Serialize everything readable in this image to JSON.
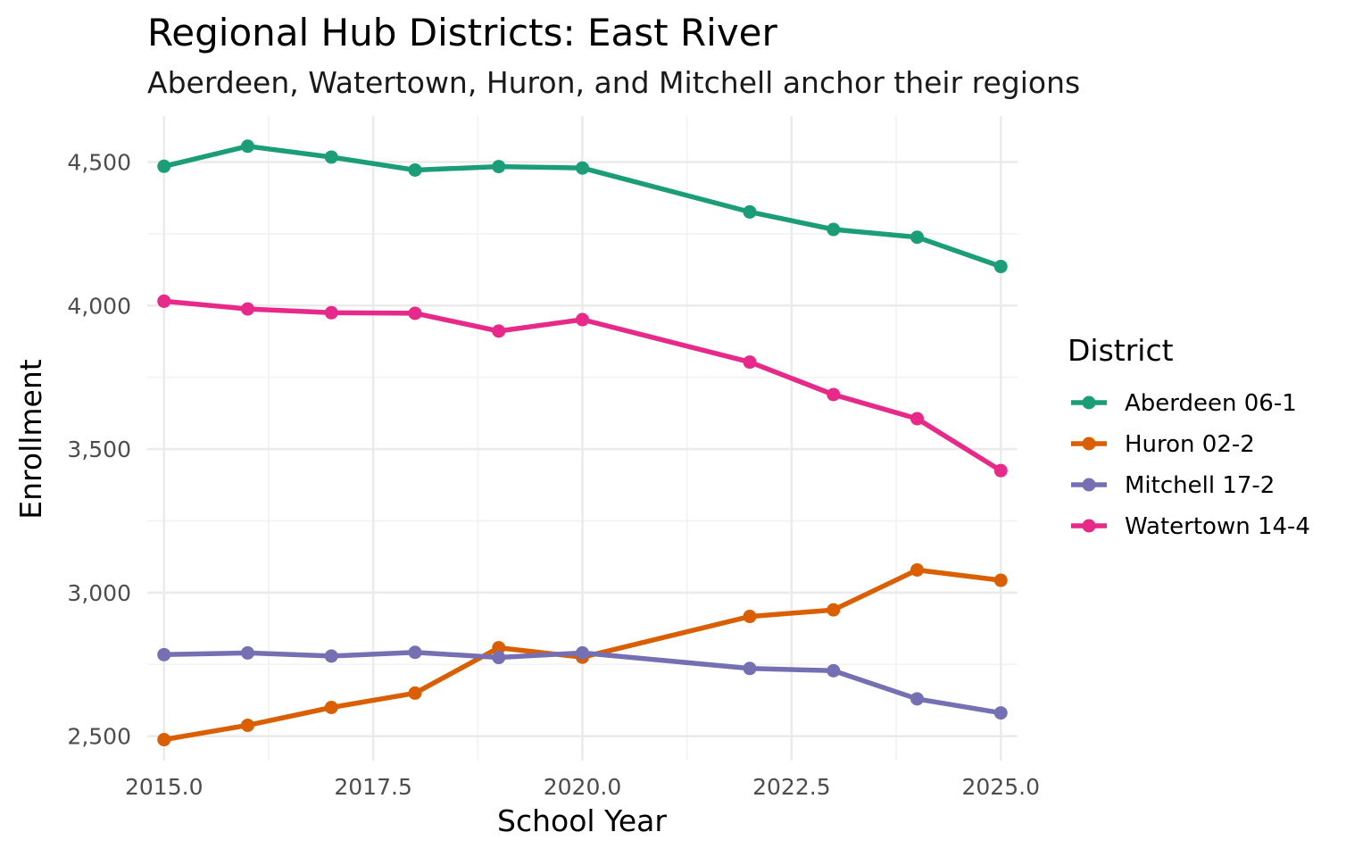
{
  "chart_data": {
    "type": "line",
    "title": "Regional Hub Districts: East River",
    "subtitle": "Aberdeen, Watertown, Huron, and Mitchell anchor their regions",
    "xlabel": "School Year",
    "ylabel": "Enrollment",
    "xlim": [
      2014.8,
      2025.2
    ],
    "ylim": [
      2415,
      4660
    ],
    "x_ticks": [
      2015,
      2017.5,
      2020,
      2022.5,
      2025
    ],
    "x_tick_labels": [
      "2015.0",
      "2017.5",
      "2020.0",
      "2022.5",
      "2025.0"
    ],
    "x_minor_ticks": [
      2016.25,
      2018.75,
      2021.25,
      2023.75
    ],
    "y_ticks": [
      2500,
      3000,
      3500,
      4000,
      4500
    ],
    "y_tick_labels": [
      "2,500",
      "3,000",
      "3,500",
      "4,000",
      "4,500"
    ],
    "y_minor_ticks": [
      2750,
      3250,
      3750,
      4250
    ],
    "grid": true,
    "legend": {
      "title": "District",
      "position": "right"
    },
    "series": [
      {
        "name": "Aberdeen 06-1",
        "color": "#1b9e77",
        "x": [
          2015,
          2016,
          2017,
          2018,
          2019,
          2020,
          2022,
          2023,
          2024,
          2025
        ],
        "values": [
          4485,
          4555,
          4517,
          4472,
          4484,
          4479,
          4326,
          4265,
          4238,
          4136
        ]
      },
      {
        "name": "Huron 02-2",
        "color": "#d95f02",
        "x": [
          2015,
          2016,
          2017,
          2018,
          2019,
          2020,
          2022,
          2023,
          2024,
          2025
        ],
        "values": [
          2488,
          2538,
          2600,
          2650,
          2808,
          2775,
          2917,
          2940,
          3079,
          3043
        ]
      },
      {
        "name": "Mitchell 17-2",
        "color": "#7570b3",
        "x": [
          2015,
          2016,
          2017,
          2018,
          2019,
          2020,
          2022,
          2023,
          2024,
          2025
        ],
        "values": [
          2784,
          2790,
          2779,
          2792,
          2774,
          2790,
          2736,
          2728,
          2630,
          2581
        ]
      },
      {
        "name": "Watertown 14-4",
        "color": "#e7298a",
        "x": [
          2015,
          2016,
          2017,
          2018,
          2019,
          2020,
          2022,
          2023,
          2024,
          2025
        ],
        "values": [
          4015,
          3988,
          3975,
          3973,
          3911,
          3951,
          3803,
          3690,
          3606,
          3425
        ]
      }
    ]
  }
}
